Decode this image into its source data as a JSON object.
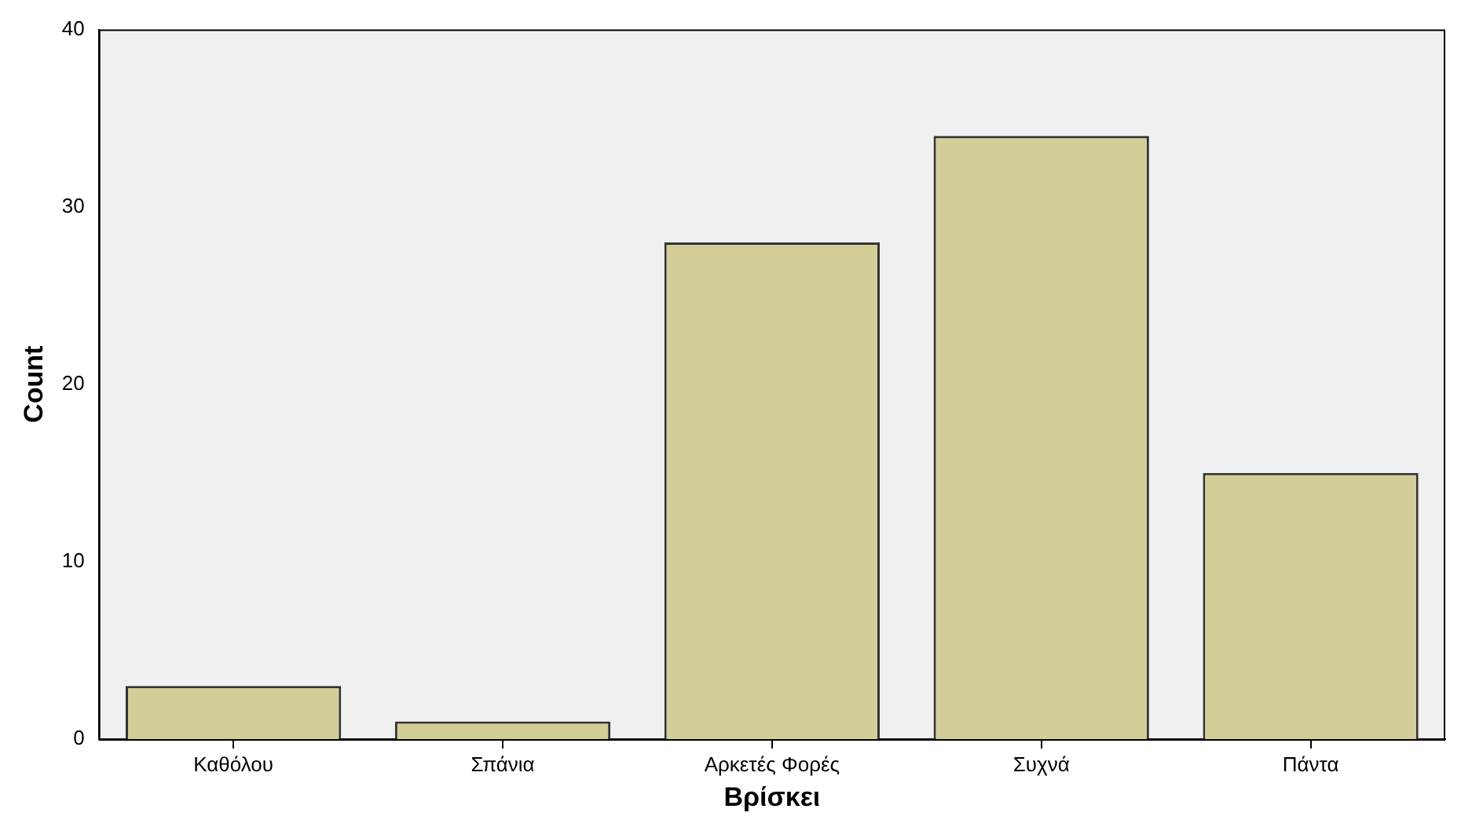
{
  "chart_data": {
    "type": "bar",
    "xlabel": "Βρίσκει",
    "ylabel": "Count",
    "categories": [
      "Καθόλου",
      "Σπάνια",
      "Αρκετές Φορές",
      "Συχνά",
      "Πάντα"
    ],
    "values": [
      3,
      1,
      28,
      34,
      15
    ],
    "color": "#d3ce97",
    "ylim": [
      0,
      40
    ],
    "yticks": [
      0,
      10,
      20,
      30,
      40
    ],
    "grid": false,
    "legend": false
  }
}
